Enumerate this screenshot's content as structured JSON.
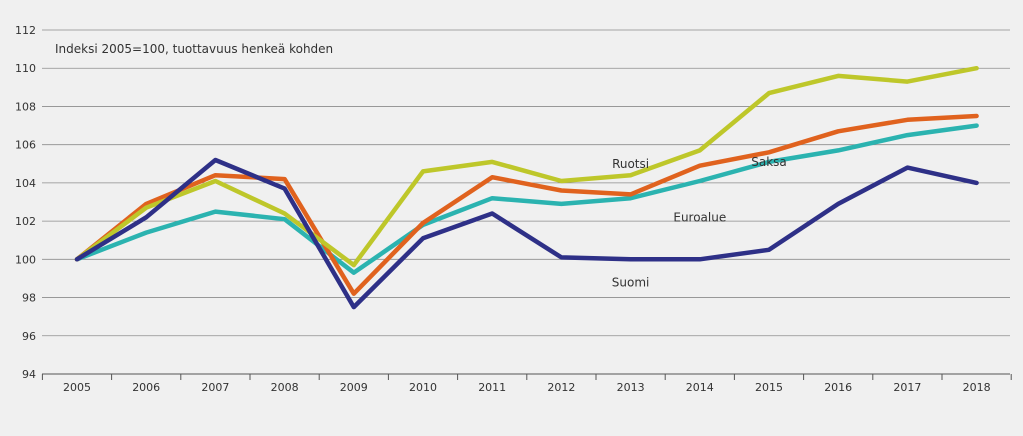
{
  "chart_data": {
    "type": "line",
    "subtitle": "Indeksi 2005=100, tuottavuus henkeä kohden",
    "categories": [
      "2005",
      "2006",
      "2007",
      "2008",
      "2009",
      "2010",
      "2011",
      "2012",
      "2013",
      "2014",
      "2015",
      "2016",
      "2017",
      "2018"
    ],
    "ylim": [
      94,
      112
    ],
    "yticks": [
      "94",
      "96",
      "98",
      "100",
      "102",
      "104",
      "106",
      "108",
      "110",
      "112"
    ],
    "grid": "horizontal",
    "series": [
      {
        "name": "Euroalue",
        "color": "#2bb3b0",
        "values": [
          100,
          101.4,
          102.5,
          102.1,
          99.3,
          101.8,
          103.2,
          102.9,
          103.2,
          104.1,
          105.1,
          105.7,
          106.5,
          107.0
        ]
      },
      {
        "name": "Saksa",
        "color": "#e0621e",
        "values": [
          100,
          102.9,
          104.4,
          104.2,
          98.2,
          101.9,
          104.3,
          103.6,
          103.4,
          104.9,
          105.6,
          106.7,
          107.3,
          107.5
        ]
      },
      {
        "name": "Ruotsi",
        "color": "#bec72a",
        "values": [
          100,
          102.7,
          104.1,
          102.4,
          99.7,
          104.6,
          105.1,
          104.1,
          104.4,
          105.7,
          108.7,
          109.6,
          109.3,
          110.0
        ]
      },
      {
        "name": "Suomi",
        "color": "#2e3087",
        "values": [
          100,
          102.2,
          105.2,
          103.7,
          97.5,
          101.1,
          102.4,
          100.1,
          100.0,
          100.0,
          100.5,
          102.9,
          104.8,
          104.0
        ]
      }
    ],
    "annotations": [
      {
        "text": "Ruotsi",
        "x": "2013",
        "y": 105.0
      },
      {
        "text": "Saksa",
        "x": "2015",
        "y": 105.1
      },
      {
        "text": "Euroalue",
        "x": "2014",
        "y": 102.2
      },
      {
        "text": "Suomi",
        "x": "2013",
        "y": 98.8
      }
    ]
  }
}
